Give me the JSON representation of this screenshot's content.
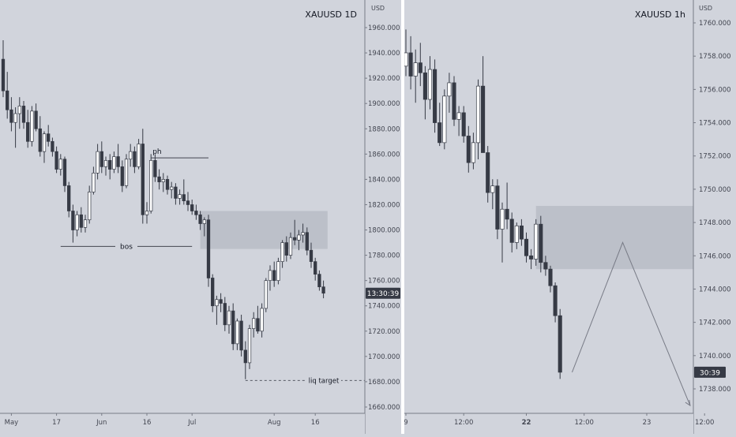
{
  "colors": {
    "background": "#d1d4dc",
    "bull_body": "#ffffff",
    "bear_body": "#363a45",
    "wick": "#363a45",
    "zone": "#b9bcc5",
    "axis_text": "#434651",
    "price_tag_bg": "#363a45",
    "price_tag_text": "#ffffff",
    "separator": "#ffffff"
  },
  "chart_data": [
    {
      "type": "candlestick",
      "symbol_label": "XAUUSD 1D",
      "currency": "USD",
      "y_ticks": [
        1660,
        1680,
        1700,
        1720,
        1740,
        1760,
        1780,
        1800,
        1820,
        1840,
        1860,
        1880,
        1900,
        1920,
        1940,
        1960
      ],
      "y_tick_labels": [
        "1660.000",
        "1680.000",
        "1700.000",
        "1720.000",
        "1740.000",
        "1760.000",
        "1780.000",
        "1800.000",
        "1820.000",
        "1840.000",
        "1860.000",
        "1880.000",
        "1900.000",
        "1920.000",
        "1940.000",
        "1960.000"
      ],
      "ylim": [
        1650,
        1970
      ],
      "x_labels": [
        {
          "label": "May",
          "index": 2
        },
        {
          "label": "17",
          "index": 13
        },
        {
          "label": "Jun",
          "index": 24
        },
        {
          "label": "16",
          "index": 35
        },
        {
          "label": "Jul",
          "index": 46
        },
        {
          "label": "Aug",
          "index": 66
        },
        {
          "label": "16",
          "index": 76
        }
      ],
      "bar_count": 86,
      "current_price_label": "13:30:39",
      "current_price": 1750,
      "annotations": {
        "ph": {
          "label": "ph",
          "price": 1857,
          "from_index": 36,
          "to_index": 50
        },
        "bos": {
          "label": "bos",
          "price": 1787,
          "from_index": 14,
          "to_index": 46
        },
        "liq_target": {
          "label": "liq target",
          "price": 1681,
          "from_index": 59,
          "to_index": 86
        },
        "zone": {
          "price_top": 1815,
          "price_bottom": 1785,
          "from_index": 48,
          "to_index": 79
        }
      },
      "candles": [
        [
          1935,
          1950,
          1905,
          1910
        ],
        [
          1910,
          1925,
          1888,
          1895
        ],
        [
          1895,
          1905,
          1878,
          1885
        ],
        [
          1885,
          1897,
          1865,
          1892
        ],
        [
          1892,
          1905,
          1880,
          1898
        ],
        [
          1898,
          1902,
          1880,
          1885
        ],
        [
          1885,
          1895,
          1865,
          1870
        ],
        [
          1870,
          1898,
          1866,
          1894
        ],
        [
          1894,
          1900,
          1878,
          1880
        ],
        [
          1880,
          1890,
          1858,
          1862
        ],
        [
          1862,
          1878,
          1853,
          1876
        ],
        [
          1876,
          1883,
          1866,
          1870
        ],
        [
          1870,
          1873,
          1858,
          1862
        ],
        [
          1862,
          1866,
          1845,
          1848
        ],
        [
          1848,
          1860,
          1843,
          1856
        ],
        [
          1856,
          1858,
          1830,
          1835
        ],
        [
          1835,
          1838,
          1810,
          1815
        ],
        [
          1815,
          1820,
          1790,
          1800
        ],
        [
          1800,
          1815,
          1795,
          1812
        ],
        [
          1812,
          1818,
          1798,
          1802
        ],
        [
          1802,
          1812,
          1798,
          1808
        ],
        [
          1808,
          1835,
          1805,
          1830
        ],
        [
          1830,
          1850,
          1828,
          1845
        ],
        [
          1845,
          1868,
          1840,
          1862
        ],
        [
          1862,
          1870,
          1845,
          1850
        ],
        [
          1850,
          1858,
          1843,
          1855
        ],
        [
          1855,
          1860,
          1840,
          1848
        ],
        [
          1848,
          1862,
          1845,
          1858
        ],
        [
          1858,
          1868,
          1845,
          1850
        ],
        [
          1850,
          1855,
          1830,
          1835
        ],
        [
          1835,
          1860,
          1833,
          1856
        ],
        [
          1856,
          1868,
          1850,
          1862
        ],
        [
          1862,
          1866,
          1845,
          1850
        ],
        [
          1850,
          1872,
          1848,
          1868
        ],
        [
          1868,
          1880,
          1805,
          1812
        ],
        [
          1812,
          1822,
          1805,
          1815
        ],
        [
          1815,
          1860,
          1813,
          1855
        ],
        [
          1855,
          1860,
          1838,
          1842
        ],
        [
          1842,
          1848,
          1832,
          1838
        ],
        [
          1838,
          1845,
          1830,
          1840
        ],
        [
          1840,
          1843,
          1828,
          1832
        ],
        [
          1832,
          1838,
          1825,
          1834
        ],
        [
          1834,
          1837,
          1820,
          1825
        ],
        [
          1825,
          1832,
          1820,
          1828
        ],
        [
          1828,
          1840,
          1820,
          1823
        ],
        [
          1823,
          1830,
          1815,
          1820
        ],
        [
          1820,
          1824,
          1812,
          1815
        ],
        [
          1815,
          1820,
          1808,
          1812
        ],
        [
          1812,
          1815,
          1800,
          1805
        ],
        [
          1805,
          1810,
          1795,
          1808
        ],
        [
          1808,
          1812,
          1755,
          1762
        ],
        [
          1762,
          1765,
          1735,
          1740
        ],
        [
          1740,
          1748,
          1725,
          1745
        ],
        [
          1745,
          1750,
          1735,
          1742
        ],
        [
          1742,
          1747,
          1720,
          1725
        ],
        [
          1725,
          1740,
          1718,
          1736
        ],
        [
          1736,
          1742,
          1705,
          1710
        ],
        [
          1710,
          1730,
          1705,
          1728
        ],
        [
          1728,
          1733,
          1700,
          1705
        ],
        [
          1705,
          1712,
          1682,
          1695
        ],
        [
          1695,
          1725,
          1690,
          1722
        ],
        [
          1722,
          1735,
          1715,
          1730
        ],
        [
          1730,
          1740,
          1718,
          1720
        ],
        [
          1720,
          1742,
          1715,
          1738
        ],
        [
          1738,
          1762,
          1735,
          1760
        ],
        [
          1760,
          1772,
          1752,
          1768
        ],
        [
          1768,
          1775,
          1755,
          1760
        ],
        [
          1760,
          1778,
          1757,
          1775
        ],
        [
          1775,
          1792,
          1770,
          1790
        ],
        [
          1790,
          1795,
          1775,
          1780
        ],
        [
          1780,
          1798,
          1777,
          1794
        ],
        [
          1794,
          1808,
          1788,
          1792
        ],
        [
          1792,
          1800,
          1784,
          1796
        ],
        [
          1796,
          1805,
          1790,
          1798
        ],
        [
          1798,
          1802,
          1780,
          1784
        ],
        [
          1784,
          1790,
          1770,
          1775
        ],
        [
          1775,
          1778,
          1760,
          1765
        ],
        [
          1765,
          1768,
          1752,
          1755
        ],
        [
          1755,
          1760,
          1746,
          1750
        ]
      ]
    },
    {
      "type": "candlestick",
      "symbol_label": "XAUUSD 1h",
      "currency": "USD",
      "y_ticks": [
        1738,
        1740,
        1742,
        1744,
        1746,
        1748,
        1750,
        1752,
        1754,
        1756,
        1758,
        1760
      ],
      "y_tick_labels": [
        "1738.000",
        "1740.000",
        "1742.000",
        "1744.000",
        "1746.000",
        "1748.000",
        "1750.000",
        "1752.000",
        "1754.000",
        "1756.000",
        "1758.000",
        "1760.000"
      ],
      "ylim": [
        1736.5,
        1760.5
      ],
      "x_labels": [
        {
          "label": "9",
          "index": 0
        },
        {
          "label": "12:00",
          "index": 12
        },
        {
          "label": "22",
          "index": 25
        },
        {
          "label": "12:00",
          "index": 37
        },
        {
          "label": "23",
          "index": 50
        },
        {
          "label": "12:00",
          "index": 62
        }
      ],
      "bar_count": 64,
      "current_price_label": "30:39",
      "current_price": 1739,
      "annotations": {
        "zone": {
          "price_top": 1749,
          "price_bottom": 1745.2,
          "from_index": 27,
          "to_index": 64
        },
        "projection": [
          {
            "index": 34.5,
            "price": 1739
          },
          {
            "index": 45,
            "price": 1746.8
          },
          {
            "index": 59,
            "price": 1737
          }
        ]
      },
      "candles": [
        [
          1757.4,
          1759.6,
          1756.8,
          1758.2
        ],
        [
          1758.2,
          1759.2,
          1756.0,
          1756.8
        ],
        [
          1756.8,
          1758.4,
          1755.2,
          1757.6
        ],
        [
          1757.6,
          1758.8,
          1756.2,
          1757.0
        ],
        [
          1757.0,
          1757.4,
          1754.2,
          1755.4
        ],
        [
          1755.4,
          1758.0,
          1754.8,
          1757.2
        ],
        [
          1757.2,
          1757.8,
          1753.4,
          1754.0
        ],
        [
          1754.0,
          1755.2,
          1752.6,
          1752.8
        ],
        [
          1752.8,
          1756.0,
          1752.4,
          1755.6
        ],
        [
          1755.6,
          1757.0,
          1754.6,
          1756.4
        ],
        [
          1756.4,
          1756.8,
          1753.8,
          1754.2
        ],
        [
          1754.2,
          1755.0,
          1753.2,
          1754.6
        ],
        [
          1754.6,
          1755.0,
          1752.8,
          1753.2
        ],
        [
          1753.2,
          1753.8,
          1751.0,
          1751.6
        ],
        [
          1751.6,
          1753.4,
          1751.2,
          1752.8
        ],
        [
          1752.8,
          1756.6,
          1751.8,
          1756.2
        ],
        [
          1756.2,
          1758.0,
          1752.4,
          1752.2
        ],
        [
          1752.2,
          1752.6,
          1749.2,
          1749.8
        ],
        [
          1749.8,
          1750.6,
          1748.8,
          1750.2
        ],
        [
          1750.2,
          1750.6,
          1747.0,
          1747.6
        ],
        [
          1747.6,
          1749.2,
          1745.6,
          1748.8
        ],
        [
          1748.8,
          1750.4,
          1747.6,
          1748.2
        ],
        [
          1748.2,
          1748.6,
          1746.2,
          1746.8
        ],
        [
          1746.8,
          1748.0,
          1746.4,
          1747.8
        ],
        [
          1747.8,
          1748.2,
          1746.6,
          1747.0
        ],
        [
          1747.0,
          1747.4,
          1745.6,
          1746.0
        ],
        [
          1746.0,
          1746.4,
          1745.2,
          1745.8
        ],
        [
          1745.8,
          1748.2,
          1745.4,
          1747.9
        ],
        [
          1747.9,
          1748.4,
          1745.0,
          1745.6
        ],
        [
          1745.6,
          1746.0,
          1744.8,
          1745.2
        ],
        [
          1745.2,
          1745.4,
          1743.8,
          1744.2
        ],
        [
          1744.2,
          1744.4,
          1742.0,
          1742.4
        ],
        [
          1742.4,
          1742.8,
          1738.6,
          1739.0
        ]
      ]
    }
  ]
}
